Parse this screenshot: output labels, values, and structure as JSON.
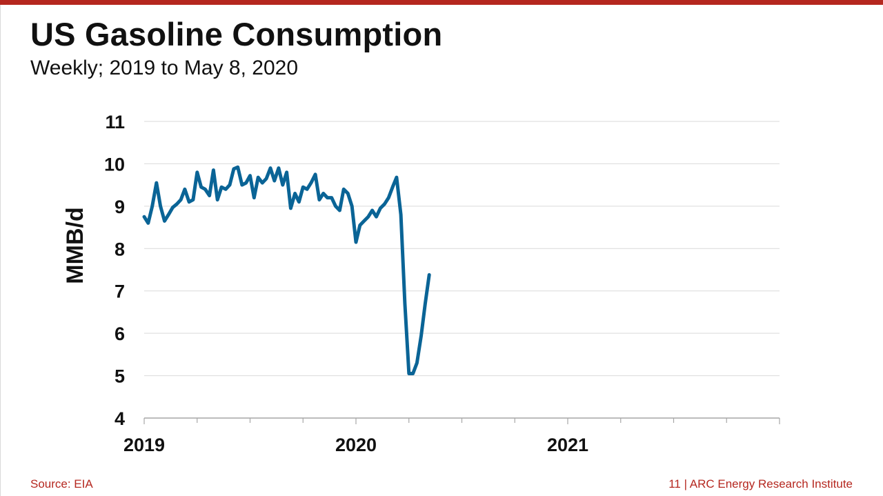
{
  "header": {
    "title": "US Gasoline Consumption",
    "subtitle": "Weekly; 2019 to May 8, 2020"
  },
  "footer": {
    "source": "Source: EIA",
    "credit": "11 | ARC Energy Research Institute"
  },
  "colors": {
    "accent_bar": "#b5271f",
    "footer_text": "#b5271f",
    "series_line": "#0a6496",
    "gridline": "#d9d9d9",
    "axis": "#a6a6a6"
  },
  "chart_data": {
    "type": "line",
    "title": "",
    "xlabel": "",
    "ylabel": "MMB/d",
    "ylim": [
      4,
      11
    ],
    "yticks": [
      4,
      5,
      6,
      7,
      8,
      9,
      10,
      11
    ],
    "xlim": [
      2019.0,
      2022.0
    ],
    "xticks": [
      2019,
      2020,
      2021
    ],
    "grid": true,
    "legend": "none",
    "series": [
      {
        "x": [
          2019.0,
          2019.019,
          2019.038,
          2019.058,
          2019.077,
          2019.096,
          2019.115,
          2019.135,
          2019.154,
          2019.173,
          2019.192,
          2019.212,
          2019.231,
          2019.25,
          2019.269,
          2019.288,
          2019.308,
          2019.327,
          2019.346,
          2019.365,
          2019.385,
          2019.404,
          2019.423,
          2019.442,
          2019.462,
          2019.481,
          2019.5,
          2019.519,
          2019.538,
          2019.558,
          2019.577,
          2019.596,
          2019.615,
          2019.635,
          2019.654,
          2019.673,
          2019.692,
          2019.712,
          2019.731,
          2019.75,
          2019.769,
          2019.788,
          2019.808,
          2019.827,
          2019.846,
          2019.865,
          2019.885,
          2019.904,
          2019.923,
          2019.942,
          2019.962,
          2019.981,
          2020.0,
          2020.019,
          2020.038,
          2020.058,
          2020.077,
          2020.096,
          2020.115,
          2020.135,
          2020.154,
          2020.173,
          2020.192,
          2020.212,
          2020.231,
          2020.25,
          2020.269,
          2020.288,
          2020.308,
          2020.327,
          2020.346
        ],
        "values": [
          8.75,
          8.6,
          9.0,
          9.55,
          9.0,
          8.65,
          8.8,
          8.97,
          9.05,
          9.15,
          9.4,
          9.1,
          9.15,
          9.8,
          9.45,
          9.4,
          9.25,
          9.85,
          9.15,
          9.45,
          9.4,
          9.5,
          9.88,
          9.92,
          9.5,
          9.55,
          9.72,
          9.2,
          9.68,
          9.55,
          9.65,
          9.9,
          9.6,
          9.9,
          9.5,
          9.8,
          8.95,
          9.3,
          9.1,
          9.45,
          9.4,
          9.55,
          9.75,
          9.15,
          9.3,
          9.2,
          9.2,
          9.0,
          8.9,
          9.4,
          9.3,
          9.0,
          8.15,
          8.55,
          8.65,
          8.75,
          8.9,
          8.75,
          8.95,
          9.05,
          9.2,
          9.45,
          9.68,
          8.8,
          6.7,
          5.05,
          5.05,
          5.3,
          5.95,
          6.7,
          7.38
        ]
      }
    ]
  }
}
